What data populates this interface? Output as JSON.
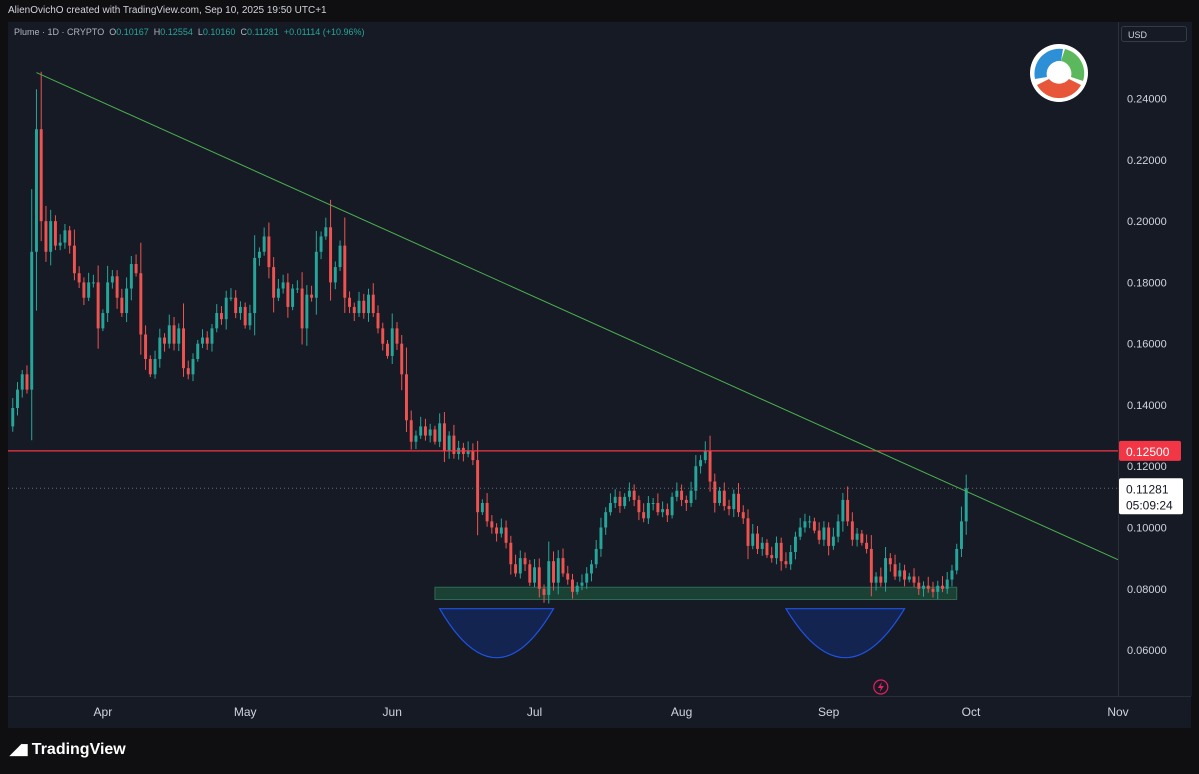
{
  "header": {
    "text": "AlienOvichO created with TradingView.com, Sep 10, 2025 19:50 UTC+1"
  },
  "legend": {
    "symbol": "Plume · 1D · CRYPTO",
    "o_label": "O",
    "o": "0.10167",
    "h_label": "H",
    "h": "0.12554",
    "l_label": "L",
    "l": "0.10160",
    "c_label": "C",
    "c": "0.11281",
    "change": "+0.01114 (+10.96%)"
  },
  "currency_button": "USD",
  "brand": {
    "name": "TradingView"
  },
  "price_axis": {
    "ticks": [
      "0.24000",
      "0.22000",
      "0.20000",
      "0.18000",
      "0.16000",
      "0.14000",
      "0.12000",
      "0.10000",
      "0.08000",
      "0.06000"
    ],
    "resistance_label": "0.12500",
    "last_price_label": "0.11281",
    "countdown_label": "05:09:24"
  },
  "time_axis": {
    "labels": [
      "Apr",
      "May",
      "Jun",
      "Jul",
      "Aug",
      "Sep",
      "Oct",
      "Nov"
    ]
  },
  "colors": {
    "bg": "#161a25",
    "up": "#26a69a",
    "down": "#ef5350",
    "resistance": "#f23645",
    "trendline": "#4caf50",
    "support_zone": "#1e4d3a",
    "arcs": "#1e53e5"
  },
  "chart_data": {
    "type": "candlestick",
    "symbol": "Plume",
    "interval": "1D",
    "ylim": [
      0.045,
      0.265
    ],
    "y_ticks": [
      0.24,
      0.22,
      0.2,
      0.18,
      0.16,
      0.14,
      0.12,
      0.1,
      0.08,
      0.06
    ],
    "x_range": [
      "2025-03-12",
      "2025-11-01"
    ],
    "x_ticks": [
      {
        "label": "Apr",
        "date": "2025-04-01"
      },
      {
        "label": "May",
        "date": "2025-05-01"
      },
      {
        "label": "Jun",
        "date": "2025-06-01"
      },
      {
        "label": "Jul",
        "date": "2025-07-01"
      },
      {
        "label": "Aug",
        "date": "2025-08-01"
      },
      {
        "label": "Sep",
        "date": "2025-09-01"
      },
      {
        "label": "Oct",
        "date": "2025-10-01"
      },
      {
        "label": "Nov",
        "date": "2025-11-01"
      }
    ],
    "candles": {
      "start_date": "2025-03-12",
      "close": [
        0.133,
        0.139,
        0.145,
        0.15,
        0.145,
        0.19,
        0.23,
        0.2,
        0.19,
        0.2,
        0.192,
        0.193,
        0.197,
        0.192,
        0.183,
        0.18,
        0.175,
        0.18,
        0.18,
        0.165,
        0.17,
        0.18,
        0.182,
        0.175,
        0.17,
        0.178,
        0.186,
        0.183,
        0.163,
        0.155,
        0.15,
        0.155,
        0.162,
        0.16,
        0.166,
        0.16,
        0.165,
        0.152,
        0.15,
        0.155,
        0.16,
        0.162,
        0.16,
        0.165,
        0.17,
        0.168,
        0.175,
        0.175,
        0.17,
        0.172,
        0.166,
        0.17,
        0.188,
        0.19,
        0.195,
        0.185,
        0.175,
        0.178,
        0.18,
        0.172,
        0.178,
        0.178,
        0.165,
        0.176,
        0.175,
        0.19,
        0.195,
        0.198,
        0.18,
        0.185,
        0.192,
        0.175,
        0.172,
        0.17,
        0.174,
        0.17,
        0.176,
        0.17,
        0.165,
        0.16,
        0.156,
        0.165,
        0.16,
        0.15,
        0.135,
        0.128,
        0.13,
        0.133,
        0.13,
        0.132,
        0.128,
        0.134,
        0.125,
        0.13,
        0.124,
        0.126,
        0.124,
        0.125,
        0.122,
        0.105,
        0.108,
        0.102,
        0.1,
        0.098,
        0.1,
        0.095,
        0.088,
        0.085,
        0.09,
        0.088,
        0.082,
        0.087,
        0.08,
        0.078,
        0.089,
        0.082,
        0.09,
        0.085,
        0.083,
        0.079,
        0.081,
        0.082,
        0.085,
        0.088,
        0.093,
        0.1,
        0.105,
        0.108,
        0.11,
        0.107,
        0.11,
        0.112,
        0.109,
        0.105,
        0.103,
        0.108,
        0.108,
        0.105,
        0.106,
        0.104,
        0.11,
        0.112,
        0.109,
        0.108,
        0.112,
        0.12,
        0.122,
        0.125,
        0.115,
        0.108,
        0.112,
        0.107,
        0.106,
        0.111,
        0.105,
        0.103,
        0.094,
        0.098,
        0.093,
        0.095,
        0.091,
        0.09,
        0.095,
        0.089,
        0.088,
        0.092,
        0.097,
        0.1,
        0.102,
        0.102,
        0.099,
        0.096,
        0.1,
        0.094,
        0.097,
        0.102,
        0.109,
        0.102,
        0.096,
        0.098,
        0.095,
        0.093,
        0.082,
        0.084,
        0.082,
        0.09,
        0.088,
        0.084,
        0.086,
        0.083,
        0.084,
        0.082,
        0.08,
        0.081,
        0.08,
        0.079,
        0.081,
        0.08,
        0.083,
        0.086,
        0.093,
        0.102,
        0.1128
      ]
    },
    "horizontal_levels": [
      {
        "label": "0.12500",
        "value": 0.125,
        "color": "#f23645"
      }
    ],
    "trendline": {
      "from": {
        "date": "2025-03-18",
        "value": 0.2485
      },
      "to": {
        "date": "2025-11-01",
        "value": 0.0895
      }
    },
    "support_zone": {
      "from": "2025-06-10",
      "to": "2025-09-28",
      "low": 0.0765,
      "high": 0.0805
    },
    "arcs": [
      {
        "from": "2025-06-11",
        "to": "2025-07-05",
        "top": 0.0735,
        "bottom": 0.0575
      },
      {
        "from": "2025-08-23",
        "to": "2025-09-17",
        "top": 0.0735,
        "bottom": 0.0575
      }
    ],
    "last_price": 0.11281,
    "countdown": "05:09:24"
  }
}
